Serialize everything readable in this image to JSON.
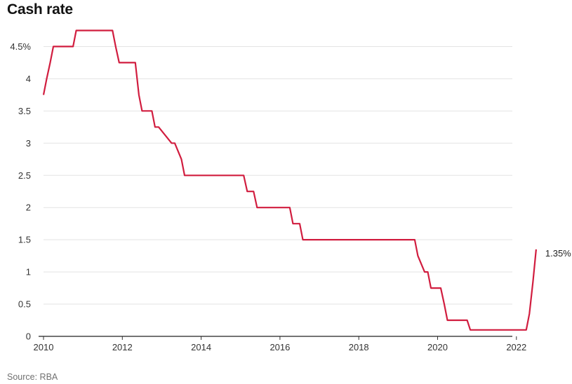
{
  "title": "Cash rate",
  "source": "Source: RBA",
  "chart_data": {
    "type": "line",
    "title": "Cash rate",
    "xlabel": "",
    "ylabel": "",
    "xlim": [
      2010,
      2022.6
    ],
    "ylim": [
      0,
      4.75
    ],
    "x_ticks": [
      2010,
      2012,
      2014,
      2016,
      2018,
      2020,
      2022
    ],
    "y_ticks": [
      {
        "value": 0,
        "label": "0"
      },
      {
        "value": 0.5,
        "label": "0.5"
      },
      {
        "value": 1,
        "label": "1"
      },
      {
        "value": 1.5,
        "label": "1.5"
      },
      {
        "value": 2,
        "label": "2"
      },
      {
        "value": 2.5,
        "label": "2.5"
      },
      {
        "value": 3,
        "label": "3"
      },
      {
        "value": 3.5,
        "label": "3.5"
      },
      {
        "value": 4,
        "label": "4"
      },
      {
        "value": 4.5,
        "label": "4.5%"
      }
    ],
    "grid": true,
    "color": "#d11d3f",
    "series": [
      {
        "x": [
          2010.0,
          2010.08,
          2010.17,
          2010.25,
          2010.33,
          2010.42,
          2010.5,
          2010.75,
          2010.83,
          2010.92,
          2011.0,
          2011.75,
          2011.83,
          2011.92,
          2012.33,
          2012.42,
          2012.5,
          2012.75,
          2012.83,
          2012.92,
          2013.25,
          2013.33,
          2013.5,
          2013.58,
          2015.0,
          2015.08,
          2015.17,
          2015.33,
          2015.42,
          2016.25,
          2016.33,
          2016.5,
          2016.58,
          2019.33,
          2019.42,
          2019.5,
          2019.67,
          2019.75,
          2019.83,
          2020.08,
          2020.17,
          2020.25,
          2020.75,
          2020.83,
          2020.92,
          2022.25,
          2022.33,
          2022.42,
          2022.5
        ],
        "y": [
          3.75,
          4.0,
          4.25,
          4.5,
          4.5,
          4.5,
          4.5,
          4.5,
          4.75,
          4.75,
          4.75,
          4.75,
          4.5,
          4.25,
          4.25,
          3.75,
          3.5,
          3.5,
          3.25,
          3.25,
          3.0,
          3.0,
          2.75,
          2.5,
          2.5,
          2.5,
          2.25,
          2.25,
          2.0,
          2.0,
          1.75,
          1.75,
          1.5,
          1.5,
          1.5,
          1.25,
          1.0,
          1.0,
          0.75,
          0.75,
          0.5,
          0.25,
          0.25,
          0.1,
          0.1,
          0.1,
          0.35,
          0.85,
          1.35
        ]
      }
    ],
    "end_label": "1.35%"
  }
}
